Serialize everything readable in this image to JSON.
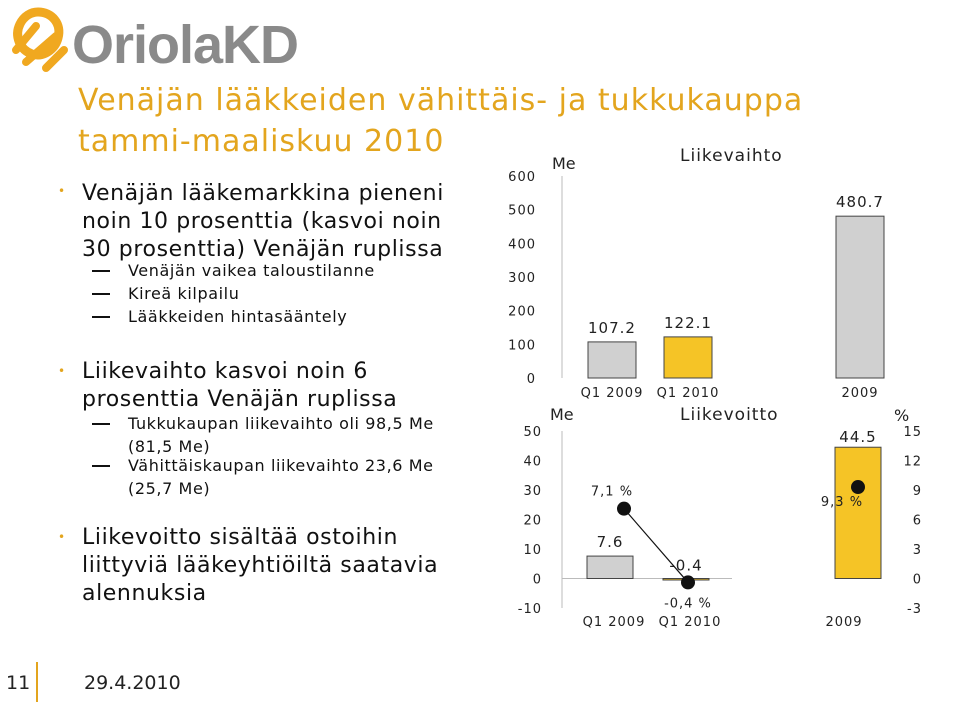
{
  "logo": {
    "text": "OriolaKD",
    "colors": [
      "#f0a820",
      "#8a8a8a"
    ]
  },
  "title": {
    "line1": "Venäjän lääkkeiden vähittäis- ja tukkukauppa",
    "line2": "tammi-maaliskuu 2010"
  },
  "bullets": [
    {
      "lines": [
        "Venäjän lääkemarkkina pieneni",
        "noin 10 prosenttia (kasvoi noin",
        "30 prosenttia) Venäjän ruplissa"
      ],
      "subs": [
        {
          "lines": [
            "Venäjän vaikea taloustilanne"
          ]
        },
        {
          "lines": [
            "Kireä kilpailu"
          ]
        },
        {
          "lines": [
            "Lääkkeiden hintasääntely"
          ]
        }
      ]
    },
    {
      "lines": [
        "Liikevaihto kasvoi noin 6",
        "prosenttia Venäjän ruplissa"
      ],
      "subs": [
        {
          "lines": [
            "Tukkukaupan liikevaihto oli 98,5 Me",
            "(81,5 Me)"
          ]
        },
        {
          "lines": [
            "Vähittäiskaupan liikevaihto 23,6 Me",
            "(25,7 Me)"
          ]
        }
      ]
    },
    {
      "lines": [
        "Liikevoitto sisältää ostoihin",
        "liittyviä lääkeyhtiöiltä saatavia",
        "alennuksia"
      ],
      "subs": []
    }
  ],
  "footer": {
    "page_number": "11",
    "date": "29.4.2010"
  },
  "chart_data": [
    {
      "type": "bar",
      "title": "Liikevaihto",
      "ylabel": "Me",
      "ylim": [
        0,
        600
      ],
      "yticks": [
        0,
        100,
        200,
        300,
        400,
        500,
        600
      ],
      "categories": [
        "Q1 2009",
        "Q1 2010",
        "2009"
      ],
      "values": [
        107.2,
        122.1,
        480.7
      ],
      "value_labels": [
        "107.2",
        "122.1",
        "480.7"
      ],
      "bar_colors": [
        "#d0d0d0",
        "#f5c426",
        "#d0d0d0"
      ],
      "grid": false
    },
    {
      "type": "bar",
      "title": "Liikevoitto",
      "ylabel": "Me",
      "y2label": "%",
      "ylim": [
        -10,
        50
      ],
      "yticks": [
        -10,
        0,
        10,
        20,
        30,
        40,
        50
      ],
      "y2lim": [
        -3,
        15
      ],
      "y2ticks": [
        -3,
        0,
        3,
        6,
        9,
        12,
        15
      ],
      "categories": [
        "Q1 2009",
        "Q1 2010",
        "2009"
      ],
      "values": [
        7.6,
        -0.4,
        44.5
      ],
      "value_labels": [
        "7.6",
        "-0.4",
        "44.5"
      ],
      "bar_colors": [
        "#d0d0d0",
        "#f5c426",
        "#f5c426"
      ],
      "margins_pct": [
        7.1,
        -0.4,
        9.3
      ],
      "margin_labels": [
        "7,1 %",
        "-0,4 %",
        "9,3 %"
      ],
      "grid": false
    }
  ]
}
